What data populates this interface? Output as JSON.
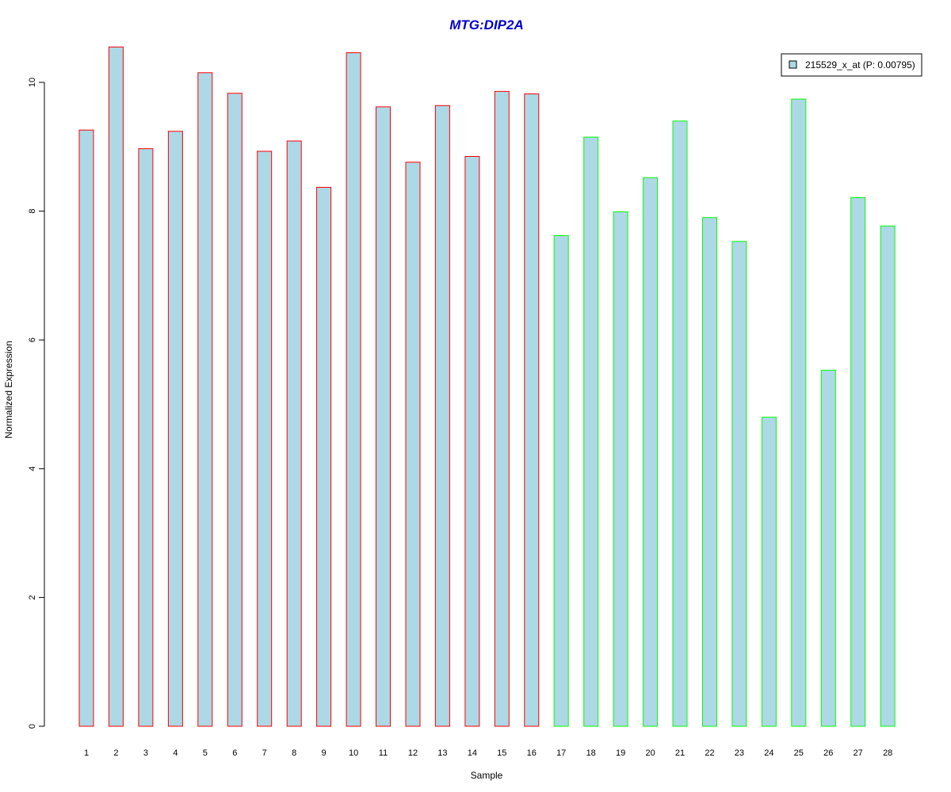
{
  "chart_data": {
    "type": "bar",
    "title": "MTG:DIP2A",
    "xlabel": "Sample",
    "ylabel": "Normalized Expression",
    "ylim": [
      0,
      10.6
    ],
    "yticks": [
      "0",
      "2",
      "4",
      "6",
      "8",
      "10"
    ],
    "categories": [
      "1",
      "2",
      "3",
      "4",
      "5",
      "6",
      "7",
      "8",
      "9",
      "10",
      "11",
      "12",
      "13",
      "14",
      "15",
      "16",
      "17",
      "18",
      "19",
      "20",
      "21",
      "22",
      "23",
      "24",
      "25",
      "26",
      "27",
      "28"
    ],
    "values": [
      9.26,
      10.55,
      8.97,
      9.24,
      10.15,
      9.83,
      8.93,
      9.09,
      8.37,
      10.46,
      9.62,
      8.76,
      9.64,
      8.85,
      9.86,
      9.82,
      7.62,
      9.15,
      7.99,
      8.52,
      9.4,
      7.9,
      7.53,
      4.8,
      9.74,
      5.53,
      8.21,
      7.77
    ],
    "fill_color": "#ADD8E6",
    "border_colors": [
      "#FF0000",
      "#FF0000",
      "#FF0000",
      "#FF0000",
      "#FF0000",
      "#FF0000",
      "#FF0000",
      "#FF0000",
      "#FF0000",
      "#FF0000",
      "#FF0000",
      "#FF0000",
      "#FF0000",
      "#FF0000",
      "#FF0000",
      "#FF0000",
      "#00FF00",
      "#00FF00",
      "#00FF00",
      "#00FF00",
      "#00FF00",
      "#00FF00",
      "#00FF00",
      "#00FF00",
      "#00FF00",
      "#00FF00",
      "#00FF00",
      "#00FF00"
    ],
    "legend": {
      "label": "215529_x_at (P: 0.00795)",
      "placement": "top-right"
    },
    "grid": false
  }
}
